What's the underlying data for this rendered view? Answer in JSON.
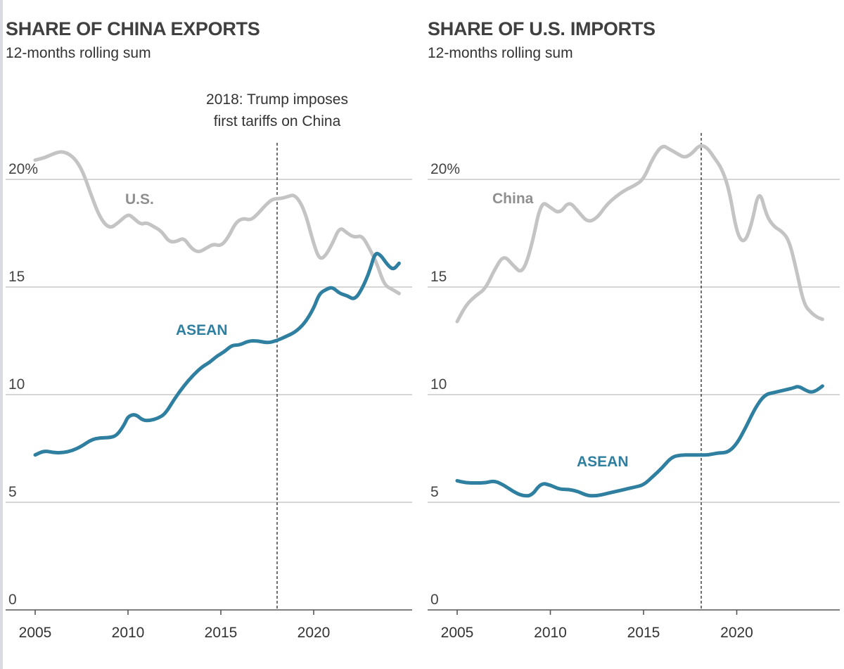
{
  "chart_data": [
    {
      "type": "line",
      "title": "SHARE OF CHINA EXPORTS",
      "subtitle": "12-months rolling sum",
      "xlim": [
        2005,
        2024.7
      ],
      "ylim": [
        0,
        20
      ],
      "yticks": [
        0,
        5,
        10,
        15,
        20
      ],
      "ytick_labels": [
        "0",
        "5",
        "10",
        "15",
        "20%"
      ],
      "xticks": [
        2005,
        2010,
        2015,
        2020
      ],
      "xtick_labels": [
        "2005",
        "2010",
        "2015",
        "2020"
      ],
      "grid": "horizontal",
      "event": {
        "x": 2018,
        "label_lines": [
          "2018: Trump imposes",
          "first tariffs on China"
        ]
      },
      "series": [
        {
          "name": "U.S.",
          "color": "#c4c4c4",
          "x": [
            2005,
            2005.5,
            2006,
            2006.4,
            2006.8,
            2007.2,
            2007.6,
            2008,
            2008.5,
            2009,
            2009.5,
            2010,
            2010.3,
            2010.7,
            2011,
            2011.4,
            2011.8,
            2012.2,
            2012.6,
            2013,
            2013.4,
            2013.8,
            2014.2,
            2014.6,
            2015,
            2015.4,
            2015.8,
            2016.2,
            2016.6,
            2017,
            2017.4,
            2017.8,
            2018.2,
            2018.6,
            2019,
            2019.5,
            2020,
            2020.3,
            2020.6,
            2021,
            2021.4,
            2021.8,
            2022.2,
            2022.6,
            2023,
            2023.4,
            2023.8,
            2024.2,
            2024.6
          ],
          "y": [
            20.9,
            21.0,
            21.2,
            21.3,
            21.2,
            20.9,
            20.3,
            19.3,
            18.2,
            17.7,
            18.0,
            18.4,
            18.2,
            17.9,
            18.0,
            17.8,
            17.6,
            17.1,
            17.1,
            17.3,
            16.8,
            16.6,
            16.8,
            17.0,
            16.9,
            17.3,
            18.0,
            18.2,
            18.1,
            18.4,
            18.8,
            19.1,
            19.1,
            19.2,
            19.3,
            18.6,
            17.0,
            16.3,
            16.4,
            17.0,
            17.8,
            17.5,
            17.3,
            17.4,
            16.8,
            16.1,
            15.1,
            14.9,
            14.7
          ],
          "label": {
            "text": "U.S.",
            "x": 2004.95,
            "y": 18.8
          }
        },
        {
          "name": "ASEAN",
          "color": "#2f7fa0",
          "x": [
            2005,
            2005.5,
            2006,
            2006.5,
            2007,
            2007.5,
            2008,
            2008.5,
            2009,
            2009.4,
            2009.8,
            2010,
            2010.4,
            2010.8,
            2011.2,
            2011.6,
            2012,
            2012.5,
            2013,
            2013.5,
            2014,
            2014.4,
            2014.8,
            2015.2,
            2015.6,
            2016,
            2016.5,
            2017,
            2017.5,
            2018,
            2018.5,
            2019,
            2019.5,
            2020,
            2020.3,
            2020.7,
            2021,
            2021.4,
            2021.8,
            2022.2,
            2022.6,
            2023,
            2023.3,
            2023.6,
            2024,
            2024.3,
            2024.6
          ],
          "y": [
            7.2,
            7.4,
            7.3,
            7.3,
            7.4,
            7.6,
            7.9,
            8.0,
            8.0,
            8.1,
            8.6,
            9.0,
            9.1,
            8.8,
            8.8,
            8.9,
            9.1,
            9.8,
            10.4,
            10.9,
            11.3,
            11.5,
            11.8,
            12.0,
            12.3,
            12.3,
            12.5,
            12.5,
            12.4,
            12.5,
            12.7,
            12.9,
            13.3,
            14.0,
            14.7,
            14.9,
            15.0,
            14.7,
            14.6,
            14.4,
            14.9,
            15.7,
            16.6,
            16.5,
            16.0,
            15.8,
            16.1
          ],
          "label": {
            "text": "ASEAN",
            "x": 2004.95,
            "y": 12.95
          }
        }
      ]
    },
    {
      "type": "line",
      "title": "SHARE OF U.S. IMPORTS",
      "subtitle": "12-months rolling sum",
      "xlim": [
        2005,
        2024.7
      ],
      "ylim": [
        0,
        20
      ],
      "yticks": [
        0,
        5,
        10,
        15,
        20
      ],
      "ytick_labels": [
        "0",
        "5",
        "10",
        "15",
        "20%"
      ],
      "xticks": [
        2005,
        2010,
        2015,
        2020
      ],
      "xtick_labels": [
        "2005",
        "2010",
        "2015",
        "2020"
      ],
      "grid": "horizontal",
      "event": {
        "x": 2018,
        "label_lines": []
      },
      "series": [
        {
          "name": "China",
          "color": "#c4c4c4",
          "x": [
            2005,
            2005.5,
            2006,
            2006.5,
            2007,
            2007.5,
            2008,
            2008.5,
            2009,
            2009.5,
            2010,
            2010.5,
            2011,
            2011.5,
            2012,
            2012.5,
            2013,
            2013.5,
            2014,
            2014.5,
            2015,
            2015.5,
            2016,
            2016.4,
            2016.8,
            2017.2,
            2017.6,
            2018,
            2018.4,
            2018.8,
            2019.2,
            2019.6,
            2020,
            2020.4,
            2020.8,
            2021.2,
            2021.6,
            2022,
            2022.4,
            2022.8,
            2023.2,
            2023.6,
            2024,
            2024.3,
            2024.6
          ],
          "y": [
            13.4,
            14.2,
            14.6,
            14.9,
            15.8,
            16.5,
            16.0,
            15.6,
            16.9,
            19.0,
            18.7,
            18.4,
            19.0,
            18.5,
            18.0,
            18.2,
            18.8,
            19.2,
            19.5,
            19.7,
            20.0,
            21.0,
            21.6,
            21.4,
            21.2,
            21.0,
            21.2,
            21.6,
            21.5,
            21.0,
            20.5,
            19.5,
            17.5,
            17.0,
            17.9,
            19.6,
            18.3,
            17.8,
            17.6,
            17.2,
            15.8,
            14.2,
            13.8,
            13.6,
            13.5
          ],
          "label": {
            "text": "China",
            "x": 2004.95,
            "y": 18.8
          }
        },
        {
          "name": "ASEAN",
          "color": "#2f7fa0",
          "x": [
            2005,
            2005.5,
            2006,
            2006.5,
            2007,
            2007.5,
            2008,
            2008.5,
            2009,
            2009.5,
            2010,
            2010.5,
            2011,
            2011.5,
            2012,
            2012.5,
            2013,
            2013.5,
            2014,
            2014.5,
            2015,
            2015.5,
            2016,
            2016.5,
            2017,
            2017.5,
            2018,
            2018.5,
            2019,
            2019.5,
            2020,
            2020.5,
            2021,
            2021.5,
            2022,
            2022.5,
            2023,
            2023.3,
            2023.7,
            2024,
            2024.3,
            2024.6
          ],
          "y": [
            6.0,
            5.9,
            5.9,
            5.9,
            6.0,
            5.8,
            5.5,
            5.3,
            5.3,
            5.9,
            5.8,
            5.6,
            5.6,
            5.5,
            5.3,
            5.3,
            5.4,
            5.5,
            5.6,
            5.7,
            5.8,
            6.2,
            6.6,
            7.1,
            7.2,
            7.2,
            7.2,
            7.2,
            7.3,
            7.3,
            7.7,
            8.5,
            9.4,
            10.0,
            10.1,
            10.2,
            10.3,
            10.4,
            10.2,
            10.1,
            10.2,
            10.4
          ],
          "label": {
            "text": "ASEAN",
            "x": 2005,
            "y": 6.75
          }
        }
      ]
    }
  ]
}
